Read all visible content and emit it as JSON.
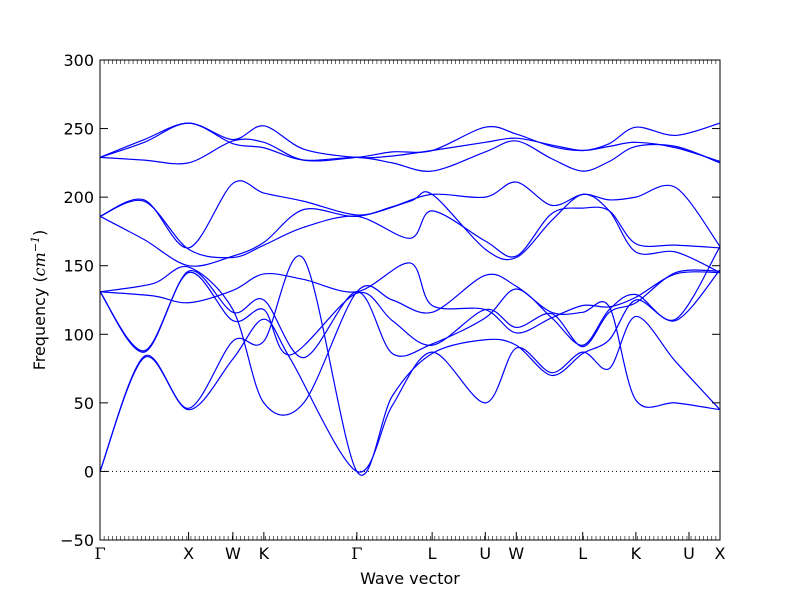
{
  "chart_data": {
    "type": "line",
    "title": "",
    "xlabel": "Wave vector",
    "ylabel": {
      "prefix": "Frequency (",
      "unit": "cm",
      "exponent": "−1",
      "suffix": ")"
    },
    "ylim": [
      -50,
      300
    ],
    "yticks": [
      -50,
      0,
      50,
      100,
      150,
      200,
      250,
      300
    ],
    "xlim": [
      0,
      7.0
    ],
    "high_symmetry_points": [
      {
        "label": "Γ",
        "x": 0.0
      },
      {
        "label": "X",
        "x": 1.0
      },
      {
        "label": "W",
        "x": 1.5
      },
      {
        "label": "K",
        "x": 1.85
      },
      {
        "label": "Γ",
        "x": 2.9
      },
      {
        "label": "L",
        "x": 3.75
      },
      {
        "label": "U",
        "x": 4.35
      },
      {
        "label": "W",
        "x": 4.7
      },
      {
        "label": "L",
        "x": 5.45
      },
      {
        "label": "K",
        "x": 6.05
      },
      {
        "label": "U",
        "x": 6.65
      },
      {
        "label": "X",
        "x": 7.0
      }
    ],
    "zero_line": {
      "y": 0,
      "style": "dotted"
    },
    "line_color": "#0000ff",
    "series": [
      {
        "x": [
          0,
          0.5,
          1,
          1.5,
          1.85,
          2.15,
          2.9,
          3.3,
          3.75,
          4.35,
          4.7,
          5.1,
          5.45,
          5.75,
          6.05,
          6.5,
          7.0
        ],
        "values": [
          0,
          83,
          45,
          82,
          111,
          82,
          0,
          48,
          87,
          50,
          90,
          72,
          87,
          75,
          113,
          80,
          45
        ]
      },
      {
        "x": [
          0,
          0.5,
          1,
          1.5,
          1.85,
          2.3,
          2.9,
          3.3,
          3.75,
          4.35,
          4.7,
          5.1,
          5.45,
          5.75,
          6.05,
          6.5,
          7.0
        ],
        "values": [
          0,
          84,
          46,
          95,
          95,
          155,
          0,
          55,
          86,
          96,
          92,
          70,
          86,
          96,
          125,
          110,
          147
        ]
      },
      {
        "x": [
          0,
          0.5,
          1,
          1.5,
          1.85,
          2.15,
          2.9,
          3.3,
          3.75,
          4.35,
          4.7,
          5.1,
          5.45,
          5.75,
          6.05,
          6.5,
          7.0
        ],
        "values": [
          131,
          88,
          145,
          110,
          118,
          85,
          130,
          110,
          92,
          118,
          105,
          115,
          91,
          116,
          123,
          145,
          146
        ]
      },
      {
        "x": [
          0,
          0.5,
          1,
          1.5,
          1.85,
          2.3,
          2.9,
          3.3,
          3.75,
          4.35,
          4.7,
          5.1,
          5.45,
          5.75,
          6.05,
          6.5,
          7.0
        ],
        "values": [
          131,
          87,
          146,
          116,
          125,
          83,
          131,
          86,
          93,
          112,
          133,
          112,
          92,
          118,
          129,
          111,
          164
        ]
      },
      {
        "x": [
          0,
          0.6,
          1,
          1.5,
          1.85,
          2.3,
          2.9,
          3.5,
          3.75,
          4.35,
          4.7,
          5.1,
          5.45,
          5.75,
          6.05,
          6.5,
          7.0
        ],
        "values": [
          131,
          128,
          123,
          132,
          144,
          140,
          131,
          152,
          121,
          118,
          101,
          112,
          121,
          120,
          127,
          144,
          145
        ]
      },
      {
        "x": [
          0,
          0.6,
          1,
          1.5,
          1.85,
          2.3,
          2.9,
          3.3,
          3.75,
          4.35,
          4.7,
          5.1,
          5.45,
          5.75,
          6.05,
          6.5,
          7.0
        ],
        "values": [
          131,
          137,
          149,
          118,
          50,
          50,
          131,
          125,
          116,
          143,
          135,
          116,
          116,
          120,
          52,
          50,
          45
        ]
      },
      {
        "x": [
          0,
          0.5,
          1,
          1.5,
          1.85,
          2.3,
          2.9,
          3.5,
          3.75,
          4.35,
          4.7,
          5.1,
          5.45,
          5.75,
          6.05,
          6.5,
          7.0
        ],
        "values": [
          186,
          197,
          162,
          156,
          165,
          178,
          186,
          170,
          190,
          168,
          157,
          188,
          192,
          190,
          166,
          165,
          163
        ]
      },
      {
        "x": [
          0,
          0.5,
          1,
          1.5,
          1.85,
          2.3,
          2.9,
          3.5,
          3.75,
          4.35,
          4.7,
          5.1,
          5.45,
          5.75,
          6.05,
          6.5,
          7.0
        ],
        "values": [
          186,
          169,
          150,
          157,
          167,
          191,
          186,
          197,
          202,
          162,
          156,
          183,
          202,
          190,
          160,
          160,
          145
        ]
      },
      {
        "x": [
          0,
          0.5,
          1,
          1.5,
          1.85,
          2.3,
          2.9,
          3.3,
          3.75,
          4.35,
          4.7,
          5.1,
          5.45,
          5.75,
          6.05,
          6.5,
          7.0
        ],
        "values": [
          186,
          198,
          163,
          210,
          203,
          197,
          187,
          193,
          202,
          200,
          211,
          194,
          202,
          198,
          200,
          207,
          164
        ]
      },
      {
        "x": [
          0,
          0.5,
          1,
          1.5,
          1.85,
          2.3,
          2.9,
          3.3,
          3.75,
          4.35,
          4.7,
          5.1,
          5.45,
          5.75,
          6.05,
          6.5,
          7.0
        ],
        "values": [
          229,
          227,
          225,
          241,
          240,
          227,
          229,
          233,
          234,
          251,
          246,
          237,
          234,
          239,
          251,
          245,
          254
        ]
      },
      {
        "x": [
          0,
          0.5,
          1,
          1.5,
          1.85,
          2.3,
          2.9,
          3.3,
          3.75,
          4.35,
          4.7,
          5.1,
          5.45,
          5.75,
          6.05,
          6.5,
          7.0
        ],
        "values": [
          229,
          242,
          254,
          242,
          252,
          235,
          229,
          230,
          234,
          240,
          243,
          238,
          234,
          237,
          240,
          236,
          226
        ]
      },
      {
        "x": [
          0,
          0.5,
          1,
          1.5,
          1.85,
          2.3,
          2.9,
          3.3,
          3.75,
          4.35,
          4.7,
          5.1,
          5.45,
          5.75,
          6.05,
          6.5,
          7.0
        ],
        "values": [
          229,
          240,
          254,
          239,
          236,
          227,
          229,
          225,
          219,
          233,
          241,
          228,
          219,
          226,
          237,
          237,
          225
        ]
      }
    ]
  }
}
